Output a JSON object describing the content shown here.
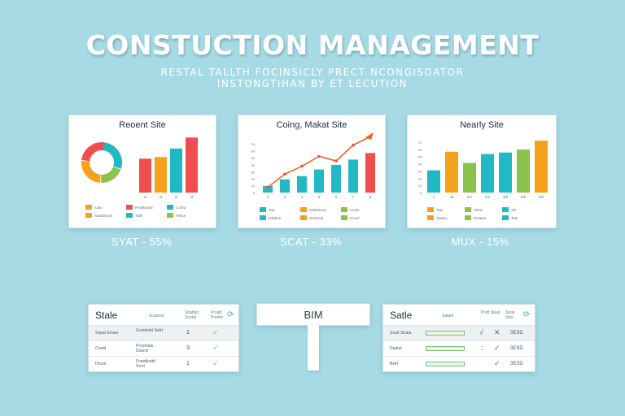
{
  "header": {
    "title": "CONSTUCTION MANAGEMENT",
    "subtitle_line1": "RESTAL TALLTH FOCINSICLY PRECT NCONGISDATOR",
    "subtitle_line2": "INSTONGTIHAN BY ET LECUTION"
  },
  "colors": {
    "background": "#a6dbe6",
    "red": "#f04e4e",
    "orange": "#f5a11c",
    "teal": "#21b9c4",
    "green": "#8bc34a"
  },
  "cards": [
    {
      "title": "Reoent Site",
      "stat": "SYAT - 55%"
    },
    {
      "title": "Coing, Makat Site",
      "stat": "SCAT - 33%"
    },
    {
      "title": "Nearly Site",
      "stat": "MUX - 15%"
    }
  ],
  "chart_data": [
    {
      "type": "bar",
      "title": "Reoent Site",
      "donut": [
        30,
        20,
        25,
        25
      ],
      "donut_colors": [
        "#21b9c4",
        "#8bc34a",
        "#f5a11c",
        "#f04e4e"
      ],
      "categories": [
        "I2",
        "I3",
        "I2",
        "I3"
      ],
      "values": [
        40,
        42,
        52,
        65
      ],
      "bar_colors": [
        "#f04e4e",
        "#f5a11c",
        "#21b9c4",
        "#f04e4e"
      ],
      "ylim": [
        0,
        70
      ],
      "legend": [
        "Iuaio",
        "Pnotkonnd",
        "Coirat",
        "Srlatdrmott",
        "Taltit",
        "Fetice"
      ]
    },
    {
      "type": "bar",
      "title": "Coing, Makat Site",
      "categories": [
        "2",
        "3",
        "4",
        "5",
        "6",
        "7",
        "8"
      ],
      "values": [
        10,
        20,
        25,
        35,
        42,
        50,
        60
      ],
      "line": [
        8,
        28,
        40,
        55,
        48,
        72,
        85
      ],
      "bar_colors": [
        "#21b9c4",
        "#21b9c4",
        "#21b9c4",
        "#21b9c4",
        "#21b9c4",
        "#21b9c4",
        "#f04e4e"
      ],
      "ylim": [
        0,
        90
      ],
      "y_ticks": [
        "0",
        "10",
        "20",
        "30",
        "40",
        "50",
        "60",
        "70"
      ],
      "legend": [
        "Tep",
        "Srlatdrmot",
        "Cacle",
        "Pahtine",
        "Srontrop",
        "Pooel"
      ]
    },
    {
      "type": "bar",
      "title": "Nearly Site",
      "categories": [
        "J",
        "J6",
        "3/1",
        "3/4",
        "3/6",
        "3/8",
        "3/0"
      ],
      "values": [
        30,
        55,
        40,
        52,
        54,
        58,
        70
      ],
      "bar_colors": [
        "#21b9c4",
        "#f5a11c",
        "#8bc34a",
        "#21b9c4",
        "#21b9c4",
        "#8bc34a",
        "#f5a11c"
      ],
      "ylim": [
        0,
        80
      ],
      "y_ticks": [
        "0",
        "10",
        "20",
        "30",
        "40",
        "50",
        "60",
        "70"
      ],
      "legend": [
        "Tato",
        "Tetrer",
        "Tlo",
        "Tasaro",
        "Prcatee",
        "Tote"
      ]
    }
  ],
  "tables": [
    {
      "name": "Stale",
      "headers": [
        "Scatend",
        "Shattlet Scntal",
        "Proatt Prodet"
      ],
      "rows": [
        {
          "label": "Sepal Smate",
          "desc": "Scantatet Setrt",
          "val": "1",
          "check": "✓"
        },
        {
          "label": "Coatd",
          "desc": "Prootnlan Dound",
          "val": "3",
          "check": "✓"
        },
        {
          "label": "Dount",
          "desc": "Fratatloatd Sorrt",
          "val": "1",
          "check": "✓"
        }
      ]
    },
    {
      "name": "Satle",
      "headers": [
        "Satant",
        "Prott Slaat",
        "Stote Stot"
      ],
      "rows": [
        {
          "label": "Soatt Strata",
          "mark1": "√",
          "mark2": "✕",
          "code": "3ESD"
        },
        {
          "label": "Daatat",
          "mark1": ":",
          "mark2": "✓",
          "code": "3ESD"
        },
        {
          "label": "Beirt",
          "mark1": "",
          "mark2": "✓",
          "code": "3ESD"
        }
      ]
    }
  ],
  "bim": {
    "label": "BIM"
  }
}
